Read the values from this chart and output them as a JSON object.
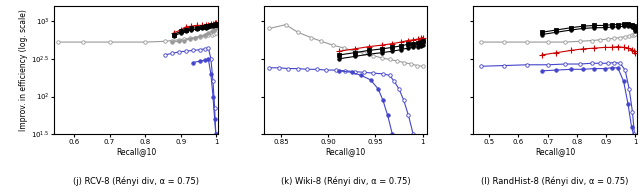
{
  "subplots": [
    {
      "label": "(j) RCV-8 (Rényi div, α = 0.75)",
      "xlabel": "Recall@10",
      "xlim": [
        0.545,
        1.005
      ],
      "xticks": [
        0.6,
        0.7,
        0.8,
        0.9,
        1.0
      ],
      "xticklabels": [
        "0.6",
        "0.7",
        "0.8",
        "0.9",
        "1"
      ],
      "ylim_exp": [
        1.5,
        3.2
      ],
      "yticks_exp": [
        1.5,
        2.0,
        2.5,
        3.0
      ],
      "series": [
        {
          "x": [
            0.555,
            0.625,
            0.7,
            0.8,
            0.855,
            0.875,
            0.895,
            0.91,
            0.925,
            0.94,
            0.955,
            0.968,
            0.978,
            0.987,
            0.994,
            1.0
          ],
          "y_exp": [
            2.72,
            2.72,
            2.72,
            2.72,
            2.73,
            2.74,
            2.75,
            2.76,
            2.77,
            2.78,
            2.79,
            2.8,
            2.81,
            2.82,
            2.83,
            2.84
          ],
          "color": "#999999",
          "marker": "o",
          "mfc": "white",
          "lw": 0.8,
          "ms": 2.5,
          "mew": 0.6
        },
        {
          "x": [
            0.875,
            0.895,
            0.91,
            0.925,
            0.94,
            0.955,
            0.968,
            0.978,
            0.987,
            0.994,
            0.998,
            1.0
          ],
          "y_exp": [
            2.72,
            2.73,
            2.74,
            2.76,
            2.78,
            2.8,
            2.82,
            2.84,
            2.86,
            2.88,
            2.9,
            2.92
          ],
          "color": "#999999",
          "marker": "o",
          "mfc": "#999999",
          "lw": 0.8,
          "ms": 2.5,
          "mew": 0.6
        },
        {
          "x": [
            0.88,
            0.9,
            0.915,
            0.93,
            0.945,
            0.96,
            0.97,
            0.978,
            0.985,
            0.992,
            0.997,
            1.0
          ],
          "y_exp": [
            2.84,
            2.88,
            2.92,
            2.93,
            2.94,
            2.94,
            2.95,
            2.95,
            2.96,
            2.96,
            2.97,
            2.97
          ],
          "color": "#cc0000",
          "marker": "+",
          "mfc": "#cc0000",
          "lw": 0.8,
          "ms": 4.0,
          "mew": 0.8
        },
        {
          "x": [
            0.88,
            0.9,
            0.915,
            0.93,
            0.945,
            0.96,
            0.97,
            0.978,
            0.985,
            0.992,
            0.997,
            1.0
          ],
          "y_exp": [
            2.82,
            2.86,
            2.88,
            2.9,
            2.91,
            2.92,
            2.93,
            2.93,
            2.94,
            2.94,
            2.95,
            2.96
          ],
          "color": "#000000",
          "marker": "s",
          "mfc": "#000000",
          "lw": 0.8,
          "ms": 2.5,
          "mew": 0.6
        },
        {
          "x": [
            0.88,
            0.9,
            0.915,
            0.93,
            0.945,
            0.96,
            0.97,
            0.978,
            0.985,
            0.992,
            0.997,
            1.0
          ],
          "y_exp": [
            2.8,
            2.84,
            2.86,
            2.88,
            2.89,
            2.9,
            2.91,
            2.92,
            2.93,
            2.93,
            2.94,
            2.95
          ],
          "color": "#000000",
          "marker": "o",
          "mfc": "#000000",
          "lw": 0.8,
          "ms": 2.5,
          "mew": 0.6
        },
        {
          "x": [
            0.855,
            0.875,
            0.895,
            0.915,
            0.935,
            0.955,
            0.968,
            0.978,
            0.985,
            0.991,
            0.9955,
            0.999,
            1.0
          ],
          "y_exp": [
            2.55,
            2.57,
            2.59,
            2.6,
            2.61,
            2.62,
            2.63,
            2.64,
            2.5,
            2.2,
            1.85,
            1.5,
            1.48
          ],
          "color": "#4444cc",
          "marker": "o",
          "mfc": "white",
          "lw": 0.8,
          "ms": 2.5,
          "mew": 0.6
        },
        {
          "x": [
            0.935,
            0.955,
            0.968,
            0.978,
            0.985,
            0.991,
            0.9955,
            0.999,
            1.0
          ],
          "y_exp": [
            2.45,
            2.47,
            2.48,
            2.49,
            2.3,
            2.0,
            1.7,
            1.5,
            1.47
          ],
          "color": "#4444cc",
          "marker": "o",
          "mfc": "#4444cc",
          "lw": 0.8,
          "ms": 2.5,
          "mew": 0.6
        }
      ]
    },
    {
      "label": "(k) Wiki-8 (Rényi div, α = 0.75)",
      "xlabel": "Recall@10",
      "xlim": [
        0.832,
        1.005
      ],
      "xticks": [
        0.85,
        0.9,
        0.95,
        1.0
      ],
      "xticklabels": [
        "0.85",
        "0.90",
        "0.95",
        "1"
      ],
      "ylim_exp": [
        1.5,
        3.2
      ],
      "yticks_exp": [
        1.5,
        2.0,
        2.5,
        3.0
      ],
      "series": [
        {
          "x": [
            0.838,
            0.855,
            0.868,
            0.882,
            0.893,
            0.905,
            0.917,
            0.928,
            0.938,
            0.948,
            0.957,
            0.965,
            0.973,
            0.98,
            0.988,
            0.994,
            1.0
          ],
          "y_exp": [
            2.9,
            2.95,
            2.85,
            2.78,
            2.73,
            2.68,
            2.64,
            2.6,
            2.57,
            2.54,
            2.51,
            2.49,
            2.47,
            2.45,
            2.43,
            2.41,
            2.4
          ],
          "color": "#999999",
          "marker": "o",
          "mfc": "white",
          "lw": 0.8,
          "ms": 2.5,
          "mew": 0.6
        },
        {
          "x": [
            0.912,
            0.928,
            0.943,
            0.957,
            0.968,
            0.977,
            0.984,
            0.99,
            0.995,
            0.998,
            1.0
          ],
          "y_exp": [
            2.6,
            2.63,
            2.66,
            2.68,
            2.7,
            2.72,
            2.74,
            2.75,
            2.76,
            2.77,
            2.78
          ],
          "color": "#cc0000",
          "marker": "+",
          "mfc": "#cc0000",
          "lw": 0.8,
          "ms": 4.0,
          "mew": 0.8
        },
        {
          "x": [
            0.912,
            0.928,
            0.943,
            0.957,
            0.968,
            0.977,
            0.984,
            0.99,
            0.995,
            0.998,
            1.0
          ],
          "y_exp": [
            2.55,
            2.58,
            2.61,
            2.63,
            2.65,
            2.67,
            2.69,
            2.7,
            2.71,
            2.72,
            2.73
          ],
          "color": "#000000",
          "marker": "s",
          "mfc": "#000000",
          "lw": 0.8,
          "ms": 2.5,
          "mew": 0.6
        },
        {
          "x": [
            0.912,
            0.928,
            0.943,
            0.957,
            0.968,
            0.977,
            0.984,
            0.99,
            0.995,
            0.998,
            1.0
          ],
          "y_exp": [
            2.5,
            2.53,
            2.56,
            2.58,
            2.6,
            2.62,
            2.64,
            2.65,
            2.66,
            2.67,
            2.68
          ],
          "color": "#000000",
          "marker": "o",
          "mfc": "#000000",
          "lw": 0.8,
          "ms": 2.5,
          "mew": 0.6
        },
        {
          "x": [
            0.838,
            0.848,
            0.858,
            0.868,
            0.878,
            0.888,
            0.898,
            0.908,
            0.918,
            0.928,
            0.938,
            0.948,
            0.958,
            0.965,
            0.97,
            0.975,
            0.98,
            0.985,
            0.99,
            0.994,
            0.997,
            1.0
          ],
          "y_exp": [
            2.38,
            2.38,
            2.37,
            2.37,
            2.36,
            2.36,
            2.35,
            2.35,
            2.34,
            2.33,
            2.32,
            2.31,
            2.3,
            2.28,
            2.2,
            2.1,
            1.95,
            1.75,
            1.5,
            1.48,
            1.47,
            1.46
          ],
          "color": "#4444cc",
          "marker": "o",
          "mfc": "white",
          "lw": 0.8,
          "ms": 2.5,
          "mew": 0.6
        },
        {
          "x": [
            0.912,
            0.925,
            0.935,
            0.945,
            0.953,
            0.958,
            0.963,
            0.968,
            0.974,
            0.98,
            0.985,
            0.99,
            0.994,
            0.997,
            1.0
          ],
          "y_exp": [
            2.34,
            2.32,
            2.28,
            2.22,
            2.1,
            1.95,
            1.75,
            1.5,
            1.47,
            1.46,
            1.46,
            1.46,
            1.46,
            1.46,
            1.46
          ],
          "color": "#4444cc",
          "marker": "o",
          "mfc": "#4444cc",
          "lw": 0.8,
          "ms": 2.5,
          "mew": 0.6
        }
      ]
    },
    {
      "label": "(l) RandHist-8 (Rényi div, α = 0.75)",
      "xlabel": "Recall@10",
      "xlim": [
        0.445,
        1.005
      ],
      "xticks": [
        0.5,
        0.6,
        0.7,
        0.8,
        0.9,
        1.0
      ],
      "xticklabels": [
        "0.5",
        "0.6",
        "0.7",
        "0.8",
        "0.9",
        "1"
      ],
      "ylim_exp": [
        1.5,
        3.2
      ],
      "yticks_exp": [
        1.5,
        2.0,
        2.5,
        3.0
      ],
      "series": [
        {
          "x": [
            0.47,
            0.55,
            0.63,
            0.7,
            0.76,
            0.81,
            0.85,
            0.88,
            0.905,
            0.927,
            0.948,
            0.965,
            0.979,
            0.99,
            0.997,
            1.0
          ],
          "y_exp": [
            2.72,
            2.72,
            2.72,
            2.72,
            2.72,
            2.73,
            2.74,
            2.75,
            2.76,
            2.77,
            2.78,
            2.79,
            2.8,
            2.81,
            2.82,
            2.83
          ],
          "color": "#999999",
          "marker": "o",
          "mfc": "white",
          "lw": 0.8,
          "ms": 2.5,
          "mew": 0.6
        },
        {
          "x": [
            0.68,
            0.73,
            0.78,
            0.82,
            0.86,
            0.895,
            0.92,
            0.94,
            0.96,
            0.975,
            0.987,
            0.995,
            1.0
          ],
          "y_exp": [
            2.85,
            2.88,
            2.91,
            2.93,
            2.94,
            2.94,
            2.95,
            2.95,
            2.96,
            2.96,
            2.95,
            2.93,
            2.9
          ],
          "color": "#000000",
          "marker": "s",
          "mfc": "#000000",
          "lw": 0.8,
          "ms": 2.5,
          "mew": 0.6
        },
        {
          "x": [
            0.68,
            0.73,
            0.78,
            0.82,
            0.86,
            0.895,
            0.92,
            0.94,
            0.96,
            0.975,
            0.987,
            0.995,
            1.0
          ],
          "y_exp": [
            2.82,
            2.85,
            2.88,
            2.9,
            2.91,
            2.91,
            2.92,
            2.92,
            2.93,
            2.93,
            2.92,
            2.9,
            2.87
          ],
          "color": "#000000",
          "marker": "o",
          "mfc": "#000000",
          "lw": 0.8,
          "ms": 2.5,
          "mew": 0.6
        },
        {
          "x": [
            0.68,
            0.73,
            0.78,
            0.82,
            0.86,
            0.895,
            0.92,
            0.94,
            0.96,
            0.975,
            0.987,
            0.995,
            1.0
          ],
          "y_exp": [
            2.55,
            2.58,
            2.61,
            2.63,
            2.64,
            2.65,
            2.65,
            2.66,
            2.65,
            2.64,
            2.62,
            2.6,
            2.57
          ],
          "color": "#cc0000",
          "marker": "+",
          "mfc": "#cc0000",
          "lw": 0.8,
          "ms": 4.0,
          "mew": 0.8
        },
        {
          "x": [
            0.47,
            0.55,
            0.63,
            0.7,
            0.76,
            0.81,
            0.85,
            0.88,
            0.905,
            0.927,
            0.948,
            0.965,
            0.979,
            0.99,
            0.997,
            1.0
          ],
          "y_exp": [
            2.4,
            2.41,
            2.42,
            2.42,
            2.43,
            2.43,
            2.44,
            2.44,
            2.44,
            2.45,
            2.44,
            2.35,
            2.1,
            1.8,
            1.5,
            1.48
          ],
          "color": "#4444cc",
          "marker": "o",
          "mfc": "white",
          "lw": 0.8,
          "ms": 2.5,
          "mew": 0.6
        },
        {
          "x": [
            0.68,
            0.73,
            0.78,
            0.82,
            0.86,
            0.895,
            0.92,
            0.94,
            0.96,
            0.975,
            0.987,
            0.995,
            1.0
          ],
          "y_exp": [
            2.34,
            2.35,
            2.36,
            2.36,
            2.37,
            2.37,
            2.38,
            2.38,
            2.2,
            1.9,
            1.6,
            1.48,
            1.47
          ],
          "color": "#4444cc",
          "marker": "o",
          "mfc": "#4444cc",
          "lw": 0.8,
          "ms": 2.5,
          "mew": 0.6
        }
      ]
    }
  ],
  "ylabel": "Improv. in efficiency (log. scale)",
  "fig_width": 6.4,
  "fig_height": 1.92,
  "caption_fontsize": 6.0,
  "axis_fontsize": 5.5,
  "tick_fontsize": 5.0
}
